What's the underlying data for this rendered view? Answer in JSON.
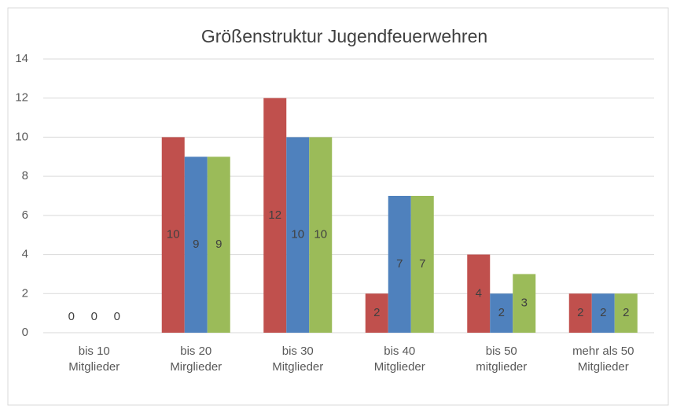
{
  "chart_data": {
    "type": "bar",
    "title": "Größenstruktur Jugendfeuerwehren",
    "categories": [
      [
        "bis 10",
        "Mitglieder"
      ],
      [
        "bis 20",
        "Mirglieder"
      ],
      [
        "bis 30",
        "Mitglieder"
      ],
      [
        "bis 40",
        "Mitglieder"
      ],
      [
        "bis 50",
        "mitglieder"
      ],
      [
        "mehr als 50",
        "Mitglieder"
      ]
    ],
    "series": [
      {
        "color": "#c0504d",
        "values": [
          0,
          10,
          12,
          2,
          4,
          2
        ]
      },
      {
        "color": "#4f81bd",
        "values": [
          0,
          9,
          10,
          7,
          2,
          2
        ]
      },
      {
        "color": "#9bbb59",
        "values": [
          0,
          9,
          10,
          7,
          3,
          2
        ]
      }
    ],
    "ylim": [
      0,
      14
    ],
    "yticks": [
      0,
      2,
      4,
      6,
      8,
      10,
      12,
      14
    ],
    "grid": true,
    "data_labels": true
  }
}
